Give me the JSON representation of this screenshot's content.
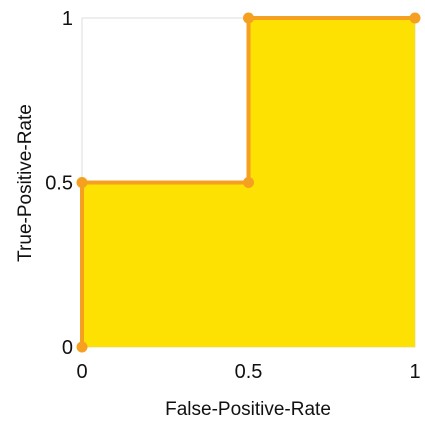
{
  "chart_data": {
    "type": "area",
    "title": "",
    "xlabel": "False-Positive-Rate",
    "ylabel": "True-Positive-Rate",
    "xlim": [
      0,
      1
    ],
    "ylim": [
      0,
      1
    ],
    "x_ticks": [
      {
        "value": 0,
        "label": "0"
      },
      {
        "value": 0.5,
        "label": "0.5"
      },
      {
        "value": 1,
        "label": "1"
      }
    ],
    "y_ticks": [
      {
        "value": 0,
        "label": "0"
      },
      {
        "value": 0.5,
        "label": "0.5"
      },
      {
        "value": 1,
        "label": "1"
      }
    ],
    "grid": false,
    "series": [
      {
        "x": [
          0,
          0,
          0.5,
          0.5,
          1
        ],
        "y": [
          0,
          0.5,
          0.5,
          1,
          1
        ],
        "line_color": "#f5a020",
        "fill_color": "#fde102"
      }
    ],
    "frame_color": "#dddddd"
  }
}
